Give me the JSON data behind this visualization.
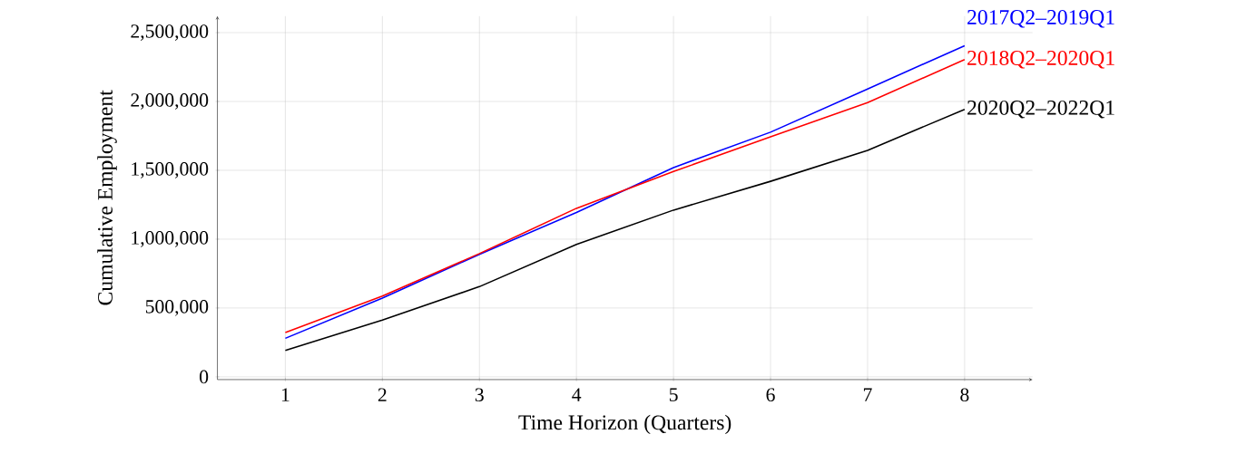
{
  "chart_data": {
    "type": "line",
    "xlabel": "Time Horizon (Quarters)",
    "ylabel": "Cumulative Employment",
    "x": [
      1,
      2,
      3,
      4,
      5,
      6,
      7,
      8
    ],
    "series": [
      {
        "name": "2017Q2–2019Q1",
        "color": "#0000ff",
        "values": [
          280000,
          572000,
          890000,
          1194000,
          1520000,
          1777000,
          2091000,
          2405000
        ]
      },
      {
        "name": "2018Q2–2020Q1",
        "color": "#ff0000",
        "values": [
          322000,
          587000,
          895000,
          1224000,
          1491000,
          1744000,
          1992000,
          2304000
        ]
      },
      {
        "name": "2020Q2–2022Q1",
        "color": "#000000",
        "values": [
          192000,
          413000,
          655000,
          962000,
          1211000,
          1420000,
          1645000,
          1943000
        ]
      }
    ],
    "xlim": [
      0.3,
      8.7
    ],
    "ylim": [
      -20000,
      2620000
    ],
    "xticks": [
      1,
      2,
      3,
      4,
      5,
      6,
      7,
      8
    ],
    "yticks": [
      0,
      {
        "value": 500000,
        "label": "500,000"
      },
      {
        "value": 1000000,
        "label": "1,000,000"
      },
      {
        "value": 1500000,
        "label": "1,500,000"
      },
      {
        "value": 2000000,
        "label": "2,000,000"
      },
      {
        "value": 2500000,
        "label": "2,500,000"
      }
    ],
    "grid": true,
    "marker": "none",
    "line_style": "solid"
  }
}
